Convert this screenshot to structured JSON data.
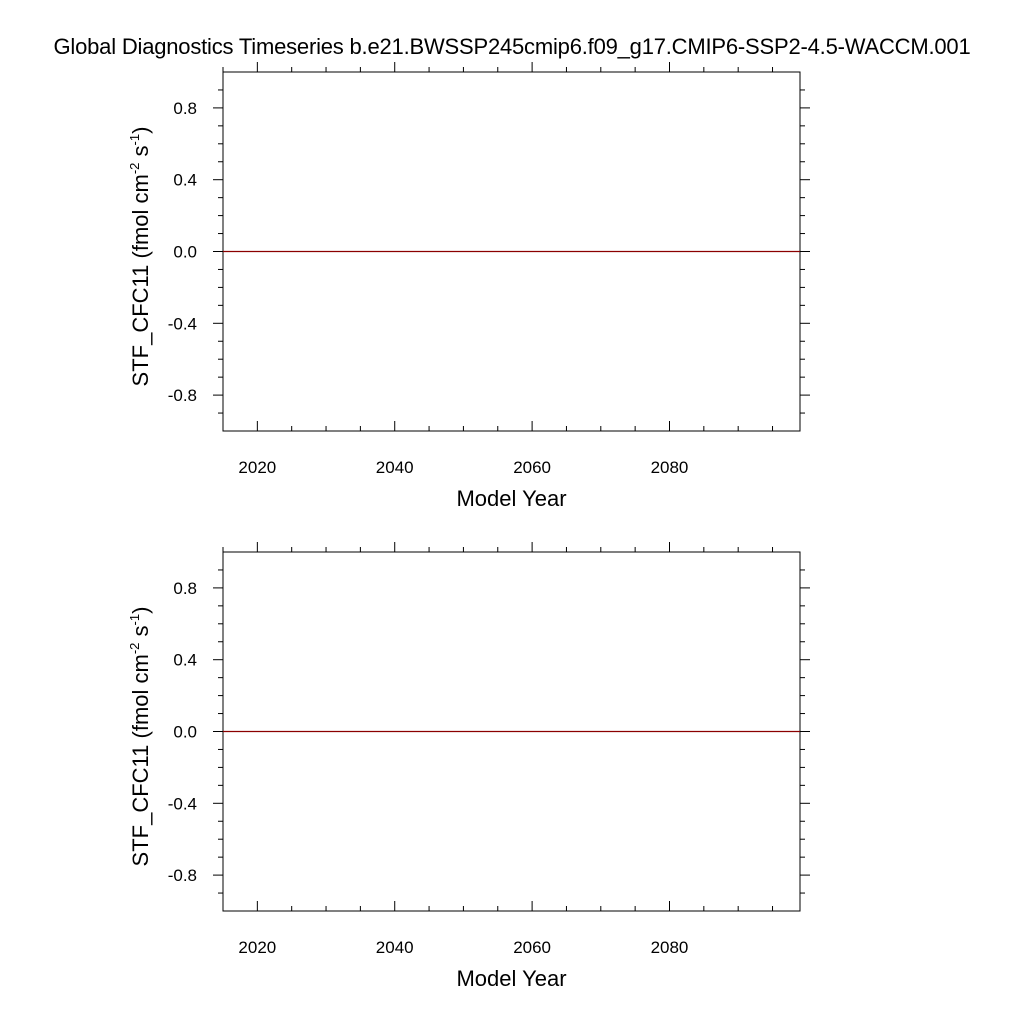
{
  "title": "Global Diagnostics Timeseries b.e21.BWSSP245cmip6.f09_g17.CMIP6-SSP2-4.5-WACCM.001",
  "chart_data": [
    {
      "type": "line",
      "xlabel": "Model Year",
      "ylabel": "STF_CFC11 (fmol cm",
      "ylabel_units": {
        "exp1": "-2",
        "mid": " s",
        "exp2": "-1",
        "close": ")"
      },
      "xlim": [
        2015,
        2099
      ],
      "ylim": [
        -1.0,
        1.0
      ],
      "xticks": [
        2020,
        2040,
        2060,
        2080
      ],
      "xtick_labels": [
        "2020",
        "2040",
        "2060",
        "2080"
      ],
      "yticks": [
        0.8,
        0.4,
        0.0,
        -0.4,
        -0.8
      ],
      "ytick_labels": [
        "0.8",
        "0.4",
        "0.0",
        "-0.4",
        "-0.8"
      ],
      "grid": false,
      "series": [
        {
          "x": [
            2015,
            2099
          ],
          "y": [
            0.0,
            0.0
          ],
          "color": "#8b0000"
        }
      ]
    },
    {
      "type": "line",
      "xlabel": "Model Year",
      "ylabel": "STF_CFC11 (fmol cm",
      "ylabel_units": {
        "exp1": "-2",
        "mid": " s",
        "exp2": "-1",
        "close": ")"
      },
      "xlim": [
        2015,
        2099
      ],
      "ylim": [
        -1.0,
        1.0
      ],
      "xticks": [
        2020,
        2040,
        2060,
        2080
      ],
      "xtick_labels": [
        "2020",
        "2040",
        "2060",
        "2080"
      ],
      "yticks": [
        0.8,
        0.4,
        0.0,
        -0.4,
        -0.8
      ],
      "ytick_labels": [
        "0.8",
        "0.4",
        "0.0",
        "-0.4",
        "-0.8"
      ],
      "grid": false,
      "series": [
        {
          "x": [
            2015,
            2099
          ],
          "y": [
            0.0,
            0.0
          ],
          "color": "#8b0000"
        }
      ]
    }
  ]
}
